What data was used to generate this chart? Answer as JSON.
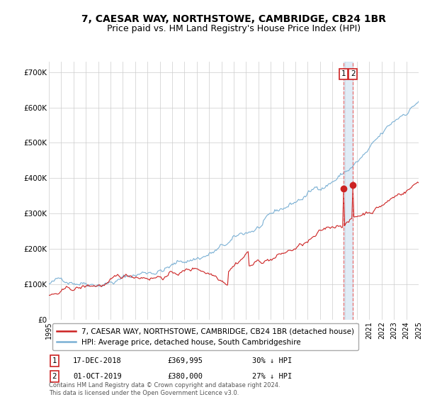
{
  "title": "7, CAESAR WAY, NORTHSTOWE, CAMBRIDGE, CB24 1BR",
  "subtitle": "Price paid vs. HM Land Registry's House Price Index (HPI)",
  "title_fontsize": 10,
  "subtitle_fontsize": 9,
  "hpi_color": "#7ab0d4",
  "price_color": "#cc2222",
  "point_color": "#cc2222",
  "bg_color": "#ffffff",
  "grid_color": "#cccccc",
  "ylim": [
    0,
    730000
  ],
  "yticks": [
    0,
    100000,
    200000,
    300000,
    400000,
    500000,
    600000,
    700000
  ],
  "ytick_labels": [
    "£0",
    "£100K",
    "£200K",
    "£300K",
    "£400K",
    "£500K",
    "£600K",
    "£700K"
  ],
  "marker1_date_idx": 287,
  "marker1_price": 369995,
  "marker2_date_idx": 296,
  "marker2_price": 380000,
  "legend_label1": "7, CAESAR WAY, NORTHSTOWE, CAMBRIDGE, CB24 1BR (detached house)",
  "legend_label2": "HPI: Average price, detached house, South Cambridgeshire",
  "annotation1_num": "1",
  "annotation1_date": "17-DEC-2018",
  "annotation1_price": "£369,995",
  "annotation1_pct": "30% ↓ HPI",
  "annotation2_num": "2",
  "annotation2_date": "01-OCT-2019",
  "annotation2_price": "£380,000",
  "annotation2_pct": "27% ↓ HPI",
  "footer": "Contains HM Land Registry data © Crown copyright and database right 2024.\nThis data is licensed under the Open Government Licence v3.0.",
  "n_months": 361,
  "hpi_seed": 42,
  "price_seed": 42
}
